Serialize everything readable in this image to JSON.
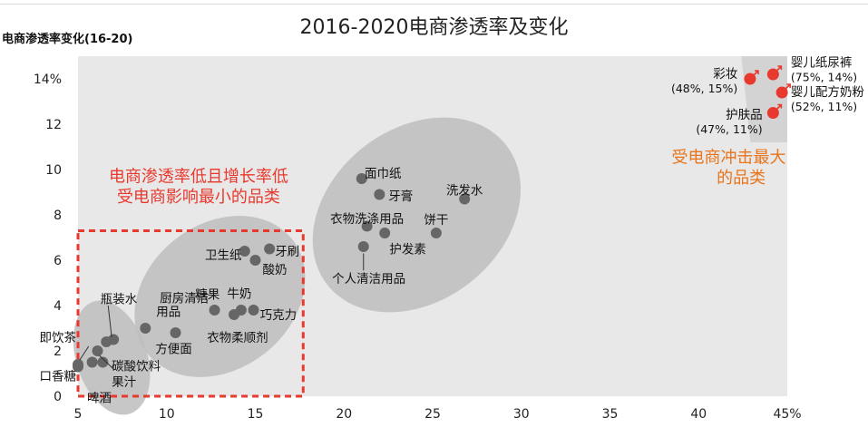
{
  "page": {
    "title": "2016-2020电商渗透率及变化",
    "ylabel": "电商渗透率变化(16-20)"
  },
  "colors": {
    "plot_bg": "#e8e8e8",
    "cluster_fill": "#bdbdbd",
    "point": "#666666",
    "highlight_point": "#e8392e",
    "annotation_red": "#e8392e",
    "annotation_orange": "#e8741c"
  },
  "chart_data": {
    "type": "scatter",
    "title": "2016-2020电商渗透率及变化",
    "ylabel": "电商渗透率变化(16-20)",
    "xlabel": "",
    "xlim": [
      5,
      45
    ],
    "ylim": [
      0,
      15
    ],
    "x_ticks": [
      {
        "value": 5,
        "label": "5"
      },
      {
        "value": 10,
        "label": "10"
      },
      {
        "value": 15,
        "label": "15"
      },
      {
        "value": 20,
        "label": "20"
      },
      {
        "value": 25,
        "label": "25"
      },
      {
        "value": 30,
        "label": "30"
      },
      {
        "value": 35,
        "label": "35"
      },
      {
        "value": 40,
        "label": "40"
      },
      {
        "value": 45,
        "label": "45%"
      }
    ],
    "y_ticks": [
      {
        "value": 0,
        "label": "0"
      },
      {
        "value": 2,
        "label": "2"
      },
      {
        "value": 4,
        "label": "4"
      },
      {
        "value": 6,
        "label": "6"
      },
      {
        "value": 8,
        "label": "8"
      },
      {
        "value": 10,
        "label": "10"
      },
      {
        "value": 12,
        "label": "12"
      },
      {
        "value": 14,
        "label": "14%"
      }
    ],
    "grid": false,
    "points": [
      {
        "label": "即饮茶",
        "x": 5.0,
        "y": 1.4
      },
      {
        "label": "口香糖",
        "x": 5.0,
        "y": 1.3
      },
      {
        "label": "啤酒",
        "x": 5.8,
        "y": 1.5
      },
      {
        "label": "碳酸饮料",
        "x": 6.1,
        "y": 2.0
      },
      {
        "label": "果汁",
        "x": 6.4,
        "y": 1.5
      },
      {
        "label": "瓶装水",
        "x": 6.6,
        "y": 2.4
      },
      {
        "label": "瓶装水",
        "x": 7.0,
        "y": 2.5
      },
      {
        "label": "厨房清洁用品",
        "x": 8.8,
        "y": 3.0
      },
      {
        "label": "方便面",
        "x": 10.5,
        "y": 2.8
      },
      {
        "label": "糖果",
        "x": 12.7,
        "y": 3.8
      },
      {
        "label": "衣物柔顺剂",
        "x": 13.8,
        "y": 3.6
      },
      {
        "label": "牛奶",
        "x": 14.2,
        "y": 3.8
      },
      {
        "label": "巧克力",
        "x": 14.9,
        "y": 3.8
      },
      {
        "label": "卫生纸",
        "x": 14.4,
        "y": 6.4
      },
      {
        "label": "酸奶",
        "x": 15.0,
        "y": 6.0
      },
      {
        "label": "牙刷",
        "x": 15.8,
        "y": 6.5
      },
      {
        "label": "面巾纸",
        "x": 21.0,
        "y": 9.6
      },
      {
        "label": "牙膏",
        "x": 22.0,
        "y": 8.9
      },
      {
        "label": "洗发水",
        "x": 26.8,
        "y": 8.7
      },
      {
        "label": "衣物洗涤用品",
        "x": 21.3,
        "y": 7.5
      },
      {
        "label": "护发素",
        "x": 22.3,
        "y": 7.2
      },
      {
        "label": "饼干",
        "x": 25.2,
        "y": 7.2
      },
      {
        "label": "个人清洁用品",
        "x": 21.1,
        "y": 6.6
      }
    ],
    "highlight_points": [
      {
        "label": "彩妆",
        "x": 42.9,
        "y": 14.0
      },
      {
        "label": "婴儿纸尿裤",
        "x": 44.2,
        "y": 14.2
      },
      {
        "label": "婴儿配方奶粉",
        "x": 44.7,
        "y": 13.4
      },
      {
        "label": "护肤品",
        "x": 44.2,
        "y": 12.5
      }
    ],
    "clusters": [
      {
        "name": "low",
        "cx": 6.9,
        "cy": 1.7,
        "rx": 2.0,
        "ry": 2.6,
        "rotate": -18
      },
      {
        "name": "mid",
        "cx": 13.0,
        "cy": 4.4,
        "rx": 5.2,
        "ry": 3.2,
        "rotate": -38
      },
      {
        "name": "upper",
        "cx": 24.1,
        "cy": 8.0,
        "rx": 6.4,
        "ry": 3.8,
        "rotate": -38
      }
    ],
    "data_labels": [
      {
        "text": "瓶装水",
        "x": 7.3,
        "y": 4.3,
        "anchor": "middle"
      },
      {
        "text": "即饮茶",
        "x": 4.9,
        "y": 2.6,
        "anchor": "end"
      },
      {
        "text": "碳酸饮料",
        "x": 6.9,
        "y": 1.35,
        "anchor": "start"
      },
      {
        "text": "口香糖",
        "x": 4.9,
        "y": 0.9,
        "anchor": "end"
      },
      {
        "text": "果汁",
        "x": 6.9,
        "y": 0.65,
        "anchor": "start"
      },
      {
        "text": "啤酒",
        "x": 6.2,
        "y": -0.05,
        "anchor": "middle"
      },
      {
        "text": "厨房清洁",
        "x": 11.0,
        "y": 4.35,
        "anchor": "middle"
      },
      {
        "text": "用品",
        "x": 10.1,
        "y": 3.75,
        "anchor": "middle"
      },
      {
        "text": "方便面",
        "x": 10.4,
        "y": 2.1,
        "anchor": "middle"
      },
      {
        "text": "糖果",
        "x": 12.3,
        "y": 4.5,
        "anchor": "middle"
      },
      {
        "text": "牛奶",
        "x": 14.1,
        "y": 4.55,
        "anchor": "middle"
      },
      {
        "text": "巧克力",
        "x": 16.3,
        "y": 3.6,
        "anchor": "middle"
      },
      {
        "text": "衣物柔顺剂",
        "x": 14.0,
        "y": 2.6,
        "anchor": "middle"
      },
      {
        "text": "卫生纸",
        "x": 13.2,
        "y": 6.25,
        "anchor": "middle"
      },
      {
        "text": "酸奶",
        "x": 16.1,
        "y": 5.6,
        "anchor": "middle"
      },
      {
        "text": "牙刷",
        "x": 16.8,
        "y": 6.4,
        "anchor": "middle"
      },
      {
        "text": "面巾纸",
        "x": 22.2,
        "y": 9.85,
        "anchor": "middle"
      },
      {
        "text": "牙膏",
        "x": 23.2,
        "y": 8.85,
        "anchor": "middle"
      },
      {
        "text": "洗发水",
        "x": 26.8,
        "y": 9.1,
        "anchor": "middle"
      },
      {
        "text": "衣物洗涤用品",
        "x": 21.3,
        "y": 7.85,
        "anchor": "middle"
      },
      {
        "text": "饼干",
        "x": 25.2,
        "y": 7.8,
        "anchor": "middle"
      },
      {
        "text": "护发素",
        "x": 23.6,
        "y": 6.5,
        "anchor": "middle"
      },
      {
        "text": "个人清洁用品",
        "x": 21.4,
        "y": 5.2,
        "anchor": "middle"
      },
      {
        "text": "彩妆",
        "x": 42.2,
        "y": 14.25,
        "anchor": "end"
      },
      {
        "text": "(48%, 15%)",
        "x": 42.2,
        "y": 13.6,
        "anchor": "end"
      },
      {
        "text": "婴儿纸尿裤",
        "x": 45.2,
        "y": 14.75,
        "anchor": "start"
      },
      {
        "text": "(75%, 14%)",
        "x": 45.2,
        "y": 14.1,
        "anchor": "start"
      },
      {
        "text": "婴儿配方奶粉",
        "x": 45.2,
        "y": 13.45,
        "anchor": "start"
      },
      {
        "text": "(52%, 11%)",
        "x": 45.2,
        "y": 12.8,
        "anchor": "start"
      },
      {
        "text": "护肤品",
        "x": 43.6,
        "y": 12.45,
        "anchor": "end"
      },
      {
        "text": "(47%, 11%)",
        "x": 43.6,
        "y": 11.8,
        "anchor": "end"
      }
    ],
    "annotations": [
      {
        "text": "电商渗透率低且增长率低",
        "color": "annotation_red",
        "x": 11.8,
        "y": 9.7
      },
      {
        "text": "受电商影响最小的品类",
        "color": "annotation_red",
        "x": 11.8,
        "y": 8.8
      },
      {
        "text": "受电商冲击最大",
        "color": "annotation_orange",
        "x": 41.7,
        "y": 10.55
      },
      {
        "text": "的品类",
        "color": "annotation_orange",
        "x": 42.4,
        "y": 9.65
      }
    ],
    "dashed_box": {
      "x0": 5.0,
      "x1": 17.7,
      "y0": 0.0,
      "y1": 7.3
    }
  }
}
